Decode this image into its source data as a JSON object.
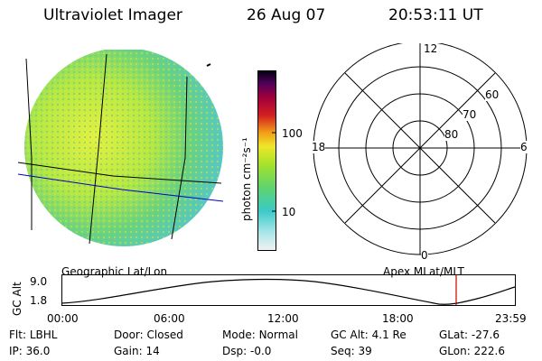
{
  "header": {
    "instrument": "Ultraviolet Imager",
    "date": "26 Aug 07",
    "time": "20:53:11 UT"
  },
  "colorbar": {
    "unit_label": "photon cm⁻²s⁻¹",
    "ticks": [
      "100",
      "10"
    ]
  },
  "polar": {
    "mlt_labels": {
      "top": "12",
      "left": "18",
      "right": "6",
      "bottom": "0"
    },
    "lat_labels": [
      "60",
      "70",
      "80"
    ]
  },
  "map_titles": {
    "left": "Geographic Lat/Lon",
    "right": "Apex MLat/MLT"
  },
  "altitude_plot": {
    "ylabel": "GC Alt",
    "yticks": [
      "9.0",
      "1.8"
    ],
    "xticks": [
      "00:00",
      "06:00",
      "12:00",
      "18:00",
      "23:59"
    ],
    "marker_color": "#cc0000"
  },
  "info": {
    "row1": [
      {
        "label": "Flt:",
        "value": "LBHL"
      },
      {
        "label": "Door:",
        "value": "Closed"
      },
      {
        "label": "Mode:",
        "value": "Normal"
      },
      {
        "label": "GC Alt:",
        "value": "4.1 Re"
      },
      {
        "label": "GLat:",
        "value": "-27.6"
      }
    ],
    "row2": [
      {
        "label": "IP:",
        "value": "36.0"
      },
      {
        "label": "Gain:",
        "value": "14"
      },
      {
        "label": "Dsp:",
        "value": "-0.0"
      },
      {
        "label": "Seq:",
        "value": "39"
      },
      {
        "label": "GLon:",
        "value": "222.6"
      }
    ]
  },
  "colors": {
    "accent_line": "#0000cc",
    "grid": "#000000"
  }
}
